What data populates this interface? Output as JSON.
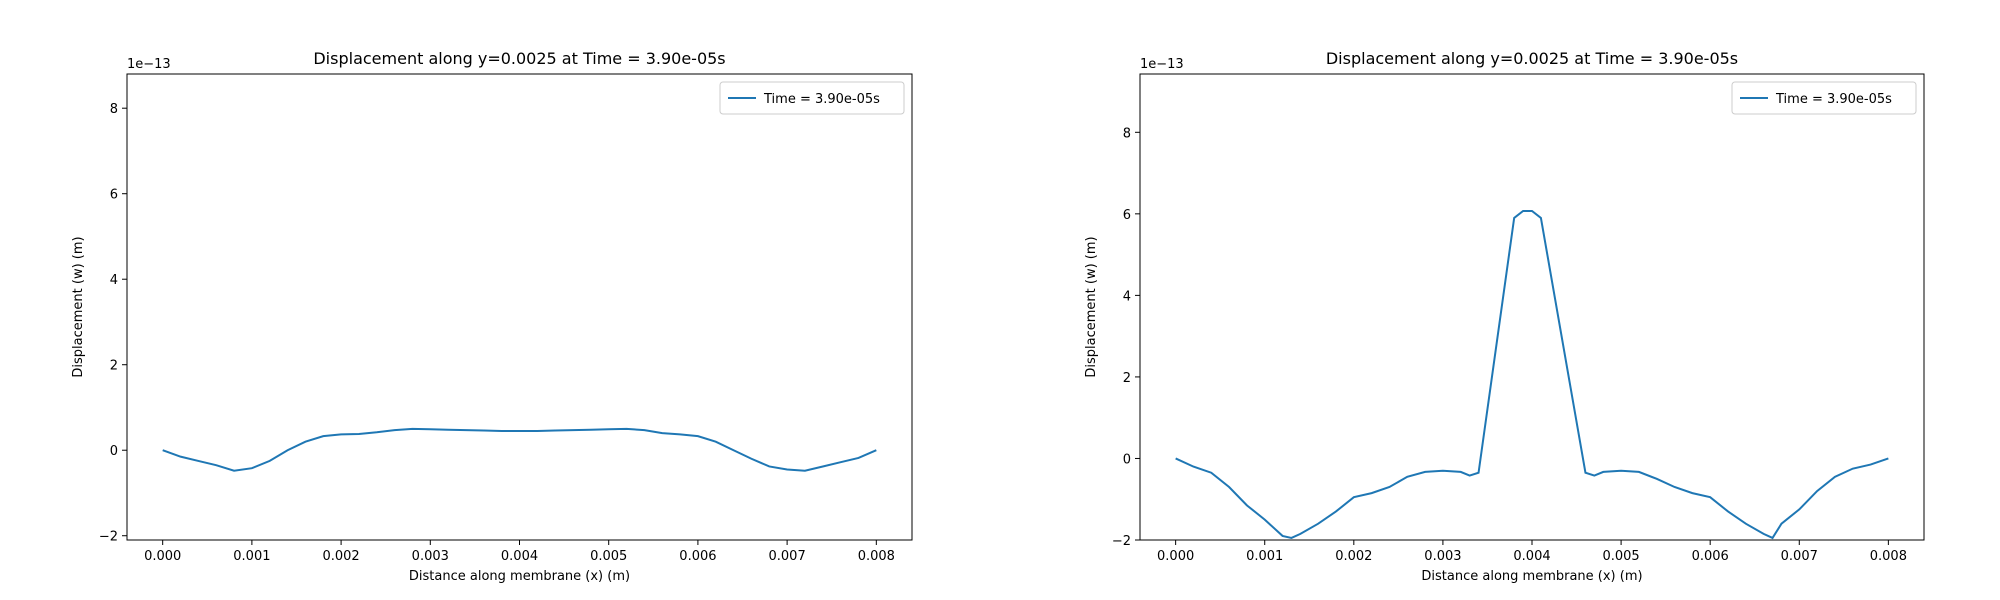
{
  "chart_data": [
    {
      "type": "line",
      "title": "Displacement along y=0.0025 at Time = 3.90e-05s",
      "x_label": "Distance along membrane (x) (m)",
      "y_label": "Displacement (w) (m)",
      "y_offset_label": "1e−13",
      "legend": "upper right",
      "x": [
        0,
        0.0002,
        0.0004,
        0.0006,
        0.0008,
        0.001,
        0.0012,
        0.0014,
        0.0016,
        0.0018,
        0.002,
        0.0022,
        0.0024,
        0.0026,
        0.0028,
        0.003,
        0.0032,
        0.0034,
        0.0036,
        0.0038,
        0.004,
        0.0042,
        0.0044,
        0.0046,
        0.0048,
        0.005,
        0.0052,
        0.0054,
        0.0056,
        0.0058,
        0.006,
        0.0062,
        0.0064,
        0.0066,
        0.0068,
        0.007,
        0.0072,
        0.0074,
        0.0076,
        0.0078,
        0.008
      ],
      "series": [
        {
          "name": "Time = 3.90e-05s",
          "color": "#1f77b4",
          "values": [
            0,
            -0.15,
            -0.25,
            -0.35,
            -0.48,
            -0.42,
            -0.25,
            0,
            0.2,
            0.33,
            0.37,
            0.38,
            0.42,
            0.47,
            0.5,
            0.49,
            0.48,
            0.47,
            0.46,
            0.45,
            0.45,
            0.45,
            0.46,
            0.47,
            0.48,
            0.49,
            0.5,
            0.47,
            0.4,
            0.37,
            0.33,
            0.2,
            0,
            -0.2,
            -0.38,
            -0.45,
            -0.48,
            -0.38,
            -0.28,
            -0.18,
            0
          ]
        }
      ],
      "xlim": [
        -0.0004,
        0.0084
      ],
      "ylim": [
        -2.1,
        8.8
      ],
      "xticks": [
        {
          "value": 0,
          "label": "0.000"
        },
        0.001,
        0.002,
        0.003,
        0.004,
        0.005,
        0.006,
        0.007,
        0.008
      ],
      "yticks": [
        {
          "value": -2,
          "label": "−2"
        },
        0,
        2,
        4,
        6,
        8
      ]
    },
    {
      "type": "line",
      "title": "Displacement along y=0.0025 at Time = 3.90e-05s",
      "x_label": "Distance along membrane (x) (m)",
      "y_label": "Displacement (w) (m)",
      "y_offset_label": "1e−13",
      "legend": "upper right",
      "x": [
        0,
        0.0002,
        0.0004,
        0.0006,
        0.0008,
        0.001,
        0.0012,
        0.0013,
        0.0014,
        0.0016,
        0.0018,
        0.002,
        0.0022,
        0.0024,
        0.0026,
        0.0028,
        0.003,
        0.0032,
        0.0033,
        0.0034,
        0.0038,
        0.0039,
        0.004,
        0.0041,
        0.0046,
        0.0047,
        0.0048,
        0.005,
        0.0052,
        0.0054,
        0.0056,
        0.0058,
        0.006,
        0.0062,
        0.0064,
        0.0066,
        0.0067,
        0.0068,
        0.007,
        0.0072,
        0.0074,
        0.0076,
        0.0078,
        0.008
      ],
      "series": [
        {
          "name": "Time = 3.90e-05s",
          "color": "#1f77b4",
          "values": [
            0,
            -0.2,
            -0.35,
            -0.7,
            -1.15,
            -1.5,
            -1.9,
            -1.95,
            -1.85,
            -1.6,
            -1.3,
            -0.95,
            -0.85,
            -0.7,
            -0.45,
            -0.33,
            -0.3,
            -0.33,
            -0.42,
            -0.35,
            5.9,
            6.07,
            6.07,
            5.9,
            -0.35,
            -0.42,
            -0.33,
            -0.3,
            -0.33,
            -0.5,
            -0.7,
            -0.85,
            -0.95,
            -1.3,
            -1.6,
            -1.85,
            -1.95,
            -1.6,
            -1.25,
            -0.8,
            -0.45,
            -0.25,
            -0.15,
            0
          ]
        }
      ],
      "xlim": [
        -0.0004,
        0.0084
      ],
      "ylim": [
        -2,
        9.43
      ],
      "xticks": [
        {
          "value": 0,
          "label": "0.000"
        },
        0.001,
        0.002,
        0.003,
        0.004,
        0.005,
        0.006,
        0.007,
        0.008
      ],
      "yticks": [
        {
          "value": -2,
          "label": "−2"
        },
        0,
        2,
        4,
        6,
        8
      ]
    }
  ]
}
